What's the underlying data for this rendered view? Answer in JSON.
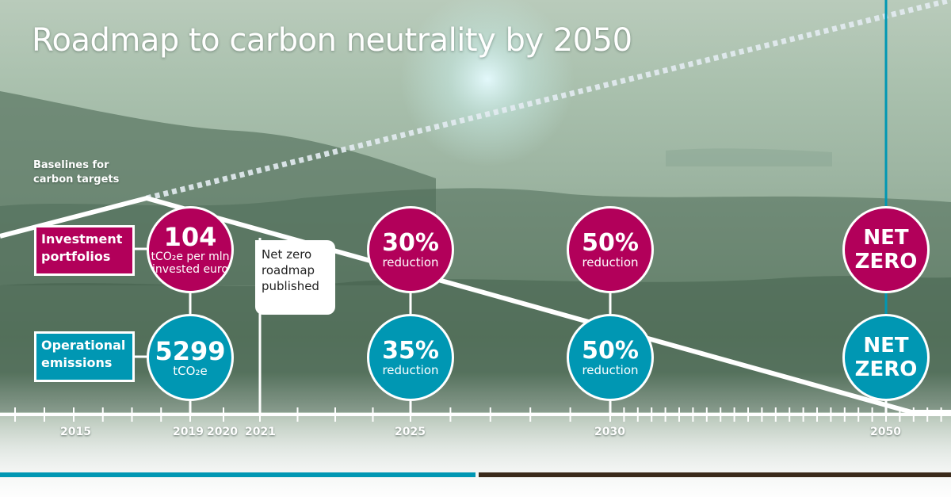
{
  "title": "Roadmap to carbon neutrality by 2050",
  "baseline_note": "Baselines for carbon targets",
  "rows": {
    "investment": {
      "label": "Investment portfolios",
      "color": "#b2005a"
    },
    "operational": {
      "label": "Operational emissions",
      "color": "#0097b3"
    }
  },
  "milestones": {
    "baseline_investment": {
      "value": "104",
      "unit": "tCO₂e per mln invested euro"
    },
    "baseline_operational": {
      "value": "5299",
      "unit": "tCO₂e"
    },
    "inv_2025": {
      "value": "30%",
      "unit": "reduction"
    },
    "inv_2030": {
      "value": "50%",
      "unit": "reduction"
    },
    "inv_2050": {
      "line1": "NET",
      "line2": "ZERO"
    },
    "op_2025": {
      "value": "35%",
      "unit": "reduction"
    },
    "op_2030": {
      "value": "50%",
      "unit": "reduction"
    },
    "op_2050": {
      "line1": "NET",
      "line2": "ZERO"
    }
  },
  "callout": "Net zero roadmap published",
  "years": [
    "2015",
    "2019",
    "2020",
    "2021",
    "2025",
    "2030",
    "2050"
  ],
  "colors": {
    "magenta": "#b2005a",
    "teal": "#0097b3",
    "white": "#ffffff"
  }
}
